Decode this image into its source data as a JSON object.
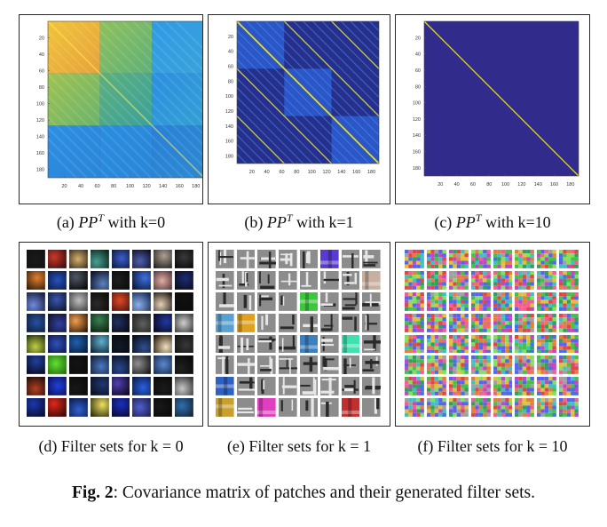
{
  "covariance_panels": [
    {
      "id": "a",
      "caption": {
        "prefix": "(a) ",
        "symbol": "PP",
        "superscript": "T",
        "suffix": " with k=0"
      },
      "y_ticks": [
        "20",
        "40",
        "60",
        "80",
        "100",
        "120",
        "140",
        "160",
        "180"
      ],
      "x_ticks": [
        "20",
        "40",
        "60",
        "80",
        "100",
        "120",
        "140",
        "160",
        "180"
      ],
      "pattern": "blocks-bright",
      "colors": {
        "background": "#2e4fa0",
        "hot": "#f5c12e",
        "mid": "#57b37e",
        "cool": "#2b8ee0"
      }
    },
    {
      "id": "b",
      "caption": {
        "prefix": "(b) ",
        "symbol": "PP",
        "superscript": "T",
        "suffix": " with k=1"
      },
      "y_ticks": [
        "20",
        "40",
        "60",
        "80",
        "100",
        "120",
        "140",
        "160",
        "180"
      ],
      "x_ticks": [
        "20",
        "40",
        "60",
        "80",
        "100",
        "120",
        "140",
        "160",
        "180"
      ],
      "pattern": "blocks-dark-diagonals",
      "colors": {
        "background": "#2a3aa5",
        "hot": "#d8dc4a",
        "mid": "#2f62d9",
        "cool": "#2e3696"
      }
    },
    {
      "id": "c",
      "caption": {
        "prefix": "(c) ",
        "symbol": "PP",
        "superscript": "T",
        "suffix": " with k=10"
      },
      "y_ticks": [
        "20",
        "40",
        "60",
        "80",
        "100",
        "120",
        "140",
        "160",
        "180"
      ],
      "x_ticks": [
        "20",
        "40",
        "60",
        "80",
        "100",
        "120",
        "140",
        "160",
        "180"
      ],
      "pattern": "identity",
      "colors": {
        "background": "#312b8c",
        "hot": "#e4dc2a",
        "mid": "#312b8c",
        "cool": "#312b8c"
      }
    }
  ],
  "filter_panels": [
    {
      "id": "d",
      "caption": "(d) Filter sets for k = 0",
      "style": "smooth-color"
    },
    {
      "id": "e",
      "caption": "(e) Filter sets for k = 1",
      "style": "gray-edges"
    },
    {
      "id": "f",
      "caption": "(f) Filter sets for k = 10",
      "style": "noise"
    }
  ],
  "figure_caption": {
    "label": "Fig. 2",
    "text": ": Covariance matrix of patches and their generated filter sets."
  }
}
